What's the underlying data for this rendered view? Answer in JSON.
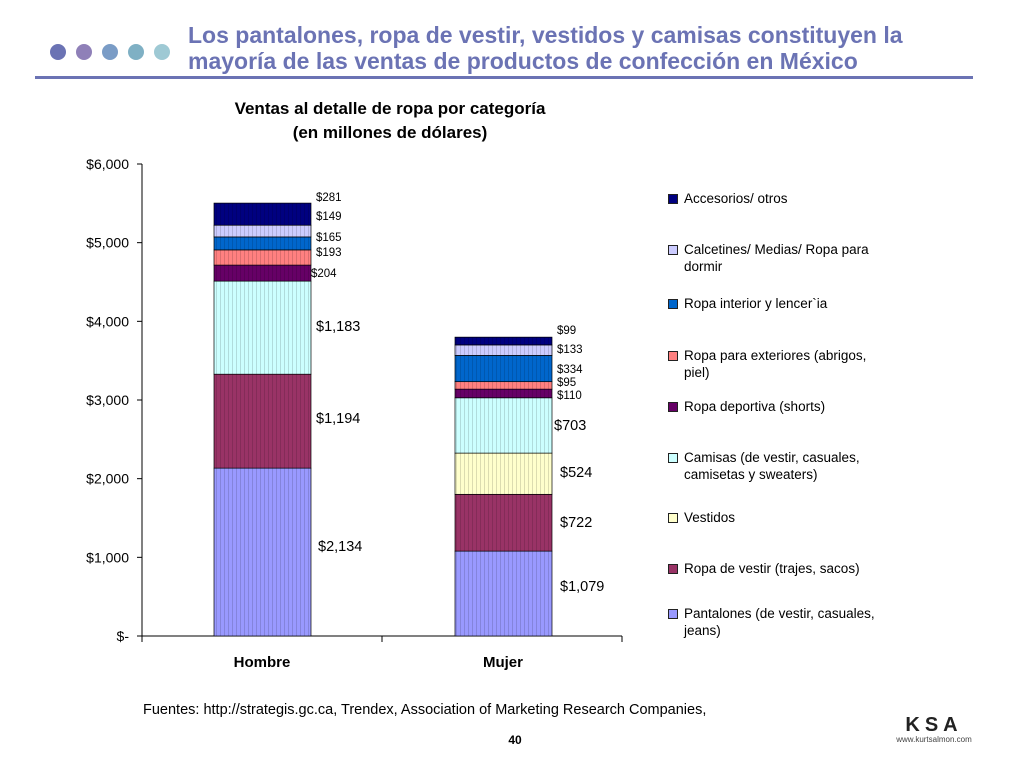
{
  "header": {
    "title_line1": "Los pantalones, ropa de vestir, vestidos y camisas constituyen la",
    "title_line2": "mayoría de las ventas de productos de confección en México",
    "dot_colors": [
      "#6b73b4",
      "#8f80b8",
      "#7a9cc6",
      "#7fb0c4",
      "#9ec9d4"
    ]
  },
  "chart_data": {
    "type": "bar",
    "stacked": true,
    "title_line1": "Ventas al detalle de ropa por categoría",
    "title_line2": "(en millones de dólares)",
    "categories": [
      "Hombre",
      "Mujer"
    ],
    "ylim": [
      0,
      6000
    ],
    "yticks": [
      0,
      1000,
      2000,
      3000,
      4000,
      5000,
      6000
    ],
    "ytick_labels": [
      "$-",
      "$1,000",
      "$2,000",
      "$3,000",
      "$4,000",
      "$5,000",
      "$6,000"
    ],
    "grid": false,
    "legend_position": "right",
    "series": [
      {
        "name": "Pantalones (de vestir, casuales, jeans)",
        "color": "#9999ff",
        "values": [
          2134,
          1079
        ],
        "labels": [
          "$2,134",
          "$1,079"
        ]
      },
      {
        "name": "Ropa de vestir (trajes, sacos)",
        "color": "#993366",
        "values": [
          1194,
          722
        ],
        "labels": [
          "$1,194",
          "$722"
        ]
      },
      {
        "name": "Vestidos",
        "color": "#ffffcc",
        "values": [
          0,
          524
        ],
        "labels": [
          "",
          "$524"
        ]
      },
      {
        "name": "Camisas (de vestir, casuales, camisetas y sweaters)",
        "color": "#ccffff",
        "values": [
          1183,
          703
        ],
        "labels": [
          "$1,183",
          "$703"
        ]
      },
      {
        "name": "Ropa deportiva (shorts)",
        "color": "#660066",
        "values": [
          204,
          110
        ],
        "labels": [
          "$204",
          "$110"
        ]
      },
      {
        "name": "Ropa para exteriores (abrigos, piel)",
        "color": "#ff8080",
        "values": [
          193,
          95
        ],
        "labels": [
          "$193",
          "$95"
        ]
      },
      {
        "name": "Ropa interior y lencer`ia",
        "color": "#0066cc",
        "values": [
          165,
          334
        ],
        "labels": [
          "$165",
          "$334"
        ]
      },
      {
        "name": "Calcetines/ Medias/ Ropa para dormir",
        "color": "#ccccff",
        "values": [
          149,
          133
        ],
        "labels": [
          "$149",
          "$133"
        ]
      },
      {
        "name": "Accesorios/ otros",
        "color": "#000080",
        "values": [
          281,
          99
        ],
        "labels": [
          "$281",
          "$99"
        ]
      }
    ]
  },
  "legend_line_breaks": {
    "Calcetines/ Medias/ Ropa para dormir": [
      "Calcetines/ Medias/ Ropa para",
      "dormir"
    ],
    "Ropa para exteriores (abrigos, piel)": [
      "Ropa para exteriores (abrigos,",
      "piel)"
    ],
    "Camisas (de vestir, casuales, camisetas y sweaters)": [
      "Camisas (de vestir, casuales,",
      "camisetas y sweaters)"
    ],
    "Pantalones (de vestir, casuales, jeans)": [
      "Pantalones (de vestir, casuales,",
      "jeans)"
    ]
  },
  "footer": {
    "source": "Fuentes: http://strategis.gc.ca, Trendex, Association of Marketing Research Companies,",
    "page_number": "40",
    "logo_text": "KSA",
    "logo_url": "www.kurtsalmon.com"
  }
}
